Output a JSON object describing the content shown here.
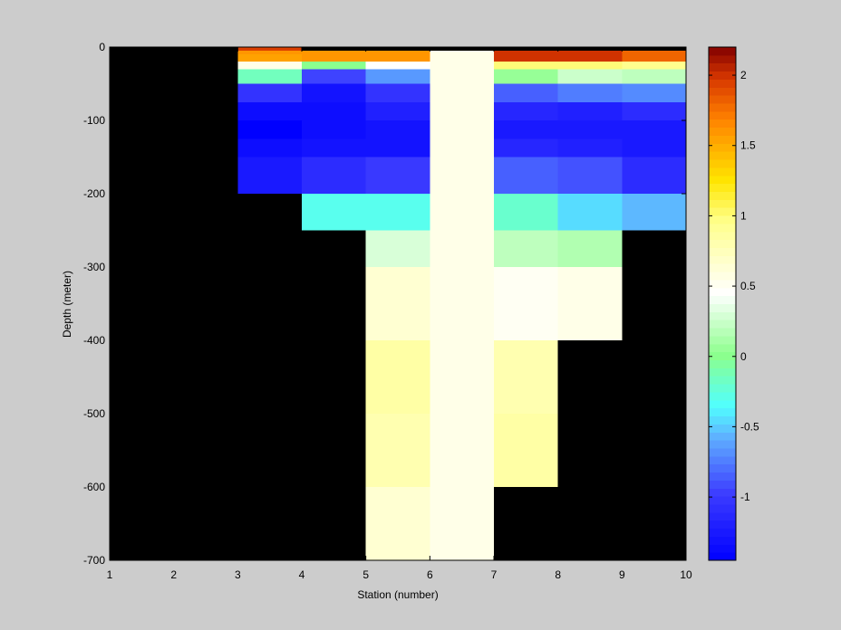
{
  "chart_data": {
    "type": "heatmap",
    "xlabel": "Station (number)",
    "ylabel": "Depth (meter)",
    "xlim": [
      1,
      10
    ],
    "ylim": [
      -700,
      0
    ],
    "xticks": [
      "1",
      "2",
      "3",
      "4",
      "5",
      "6",
      "7",
      "8",
      "9",
      "10"
    ],
    "yticks": [
      "0",
      "-100",
      "-200",
      "-300",
      "-400",
      "-500",
      "-600",
      "-700"
    ],
    "colorbar_ticks": [
      "-1",
      "-0.5",
      "0",
      "0.5",
      "1",
      "1.5",
      "2"
    ],
    "colorbar_range": [
      -1.45,
      2.2
    ],
    "background_color": "#000000",
    "colormap": "blue-cyan-green-white-yellow-orange-red",
    "layers": [
      {
        "top": 0,
        "bottom": -5,
        "values": [
          null,
          null,
          1.95,
          null,
          null,
          null,
          null,
          null,
          null
        ]
      },
      {
        "top": -5,
        "bottom": -10,
        "values": [
          null,
          null,
          1.6,
          1.6,
          1.6,
          0.55,
          2.0,
          2.0,
          1.8
        ]
      },
      {
        "top": -10,
        "bottom": -20,
        "values": [
          null,
          null,
          1.55,
          1.6,
          1.6,
          0.55,
          2.0,
          2.0,
          1.8
        ]
      },
      {
        "top": -20,
        "bottom": -30,
        "values": [
          null,
          null,
          0.55,
          0.0,
          0.45,
          0.55,
          1.0,
          1.0,
          0.95
        ]
      },
      {
        "top": -30,
        "bottom": -50,
        "values": [
          null,
          null,
          -0.15,
          -0.95,
          -0.65,
          0.55,
          0.05,
          0.25,
          0.2
        ]
      },
      {
        "top": -50,
        "bottom": -75,
        "values": [
          null,
          null,
          -1.05,
          -1.3,
          -1.05,
          0.55,
          -0.85,
          -0.75,
          -0.7
        ]
      },
      {
        "top": -75,
        "bottom": -100,
        "values": [
          null,
          null,
          -1.35,
          -1.35,
          -1.2,
          0.55,
          -1.15,
          -1.2,
          -1.1
        ]
      },
      {
        "top": -100,
        "bottom": -125,
        "values": [
          null,
          null,
          -1.45,
          -1.35,
          -1.3,
          0.55,
          -1.25,
          -1.25,
          -1.25
        ]
      },
      {
        "top": -125,
        "bottom": -150,
        "values": [
          null,
          null,
          -1.35,
          -1.3,
          -1.3,
          0.55,
          -1.15,
          -1.2,
          -1.25
        ]
      },
      {
        "top": -150,
        "bottom": -200,
        "values": [
          null,
          null,
          -1.25,
          -1.1,
          -1.0,
          0.55,
          -0.85,
          -0.9,
          -1.1
        ]
      },
      {
        "top": -200,
        "bottom": -250,
        "values": [
          null,
          null,
          null,
          -0.3,
          -0.3,
          0.55,
          -0.2,
          -0.45,
          -0.55
        ]
      },
      {
        "top": -250,
        "bottom": -300,
        "values": [
          null,
          null,
          null,
          null,
          0.3,
          0.55,
          0.2,
          0.15,
          null
        ]
      },
      {
        "top": -300,
        "bottom": -400,
        "values": [
          null,
          null,
          null,
          null,
          0.65,
          0.55,
          0.5,
          0.55,
          null
        ]
      },
      {
        "top": -400,
        "bottom": -500,
        "values": [
          null,
          null,
          null,
          null,
          0.85,
          0.55,
          0.8,
          null,
          null
        ]
      },
      {
        "top": -500,
        "bottom": -600,
        "values": [
          null,
          null,
          null,
          null,
          0.8,
          0.55,
          0.85,
          null,
          null
        ]
      },
      {
        "top": -600,
        "bottom": -700,
        "values": [
          null,
          null,
          null,
          null,
          0.65,
          0.55,
          null,
          null,
          null
        ]
      }
    ]
  }
}
